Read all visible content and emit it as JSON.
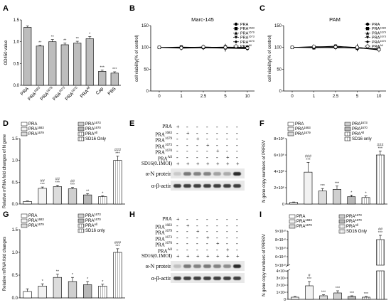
{
  "panel_letters": [
    "A",
    "B",
    "C",
    "D",
    "E",
    "F",
    "G",
    "H",
    "I"
  ],
  "chart_data": [
    {
      "id": "A",
      "type": "bar",
      "ylabel": "OD450 value",
      "categories": [
        "PRA",
        "PRA1683",
        "PRA1679",
        "PRA1673",
        "PRA1670",
        "PRAAll",
        "Cap",
        "PBS"
      ],
      "values": [
        1.33,
        0.9,
        1.0,
        0.93,
        0.97,
        1.07,
        0.32,
        0.28
      ],
      "errors": [
        0.03,
        0.02,
        0.05,
        0.04,
        0.04,
        0.05,
        0.03,
        0.03
      ],
      "stars": [
        "",
        "**",
        "**",
        "**",
        "**",
        "*",
        "***",
        "***"
      ],
      "ylim": [
        0,
        1.5
      ],
      "yticks": [
        "0.0",
        "0.5",
        "1.0",
        "1.5"
      ],
      "bar_color": "#bdbdbd"
    },
    {
      "id": "B",
      "type": "line",
      "title": "Marc-145",
      "ylabel": "cell viability(% of control)",
      "x": [
        "0",
        "1",
        "2.5",
        "5",
        "10"
      ],
      "ylim": [
        0,
        150
      ],
      "yticks": [
        "0",
        "50",
        "100",
        "150"
      ],
      "series": [
        {
          "name": "PRA",
          "values": [
            100,
            100,
            99,
            100,
            99
          ]
        },
        {
          "name": "PRA1683",
          "values": [
            100,
            101,
            100,
            101,
            100
          ]
        },
        {
          "name": "PRA1679",
          "values": [
            100,
            99,
            100,
            99,
            98
          ]
        },
        {
          "name": "PRA1673",
          "values": [
            100,
            100,
            101,
            100,
            100
          ]
        },
        {
          "name": "PRA1670",
          "values": [
            100,
            98,
            99,
            98,
            97
          ]
        },
        {
          "name": "PRAAll",
          "values": [
            100,
            99,
            101,
            100,
            99
          ]
        }
      ]
    },
    {
      "id": "C",
      "type": "line",
      "title": "PAM",
      "ylabel": "cell viability(% of control)",
      "x": [
        "0",
        "1",
        "2.5",
        "5",
        "10"
      ],
      "ylim": [
        0,
        150
      ],
      "yticks": [
        "0",
        "50",
        "100",
        "150"
      ],
      "series": [
        {
          "name": "PRA",
          "values": [
            100,
            101,
            101,
            100,
            96
          ]
        },
        {
          "name": "PRA1683",
          "values": [
            100,
            100,
            102,
            99,
            95
          ]
        },
        {
          "name": "PRA1679",
          "values": [
            100,
            99,
            100,
            98,
            97
          ]
        },
        {
          "name": "PRA1673",
          "values": [
            100,
            101,
            103,
            100,
            96
          ]
        },
        {
          "name": "PRA1670",
          "values": [
            100,
            100,
            99,
            99,
            94
          ]
        },
        {
          "name": "PRAAll",
          "values": [
            100,
            102,
            101,
            100,
            95
          ]
        }
      ]
    },
    {
      "id": "D",
      "type": "bar",
      "ylabel": "Relative mRNA fold changes of N gene",
      "legend": [
        "PRA",
        "PRA1683",
        "PRA1679",
        "PRA1673",
        "PRA1670",
        "PRAAll",
        "SD16 Only"
      ],
      "categories": [
        "PRA",
        "PRA1683",
        "PRA1679",
        "PRA1673",
        "PRA1670",
        "PRAAll",
        "SD16 Only"
      ],
      "values": [
        0.06,
        0.36,
        0.4,
        0.35,
        0.21,
        0.17,
        1.0
      ],
      "errors": [
        0.01,
        0.03,
        0.03,
        0.03,
        0.03,
        0.02,
        0.1
      ],
      "stars": [
        "",
        "##\n***",
        "##\n***",
        "##\n***",
        "**",
        "*",
        "###\n***"
      ],
      "ylim": [
        0,
        1.5
      ],
      "yticks": [
        "0.0",
        "0.5",
        "1.0",
        "1.5"
      ]
    },
    {
      "id": "F",
      "type": "bar",
      "ylabel": "N gene copy numbers of PRRSV",
      "legend": [
        "PRA",
        "PRA1683",
        "PRA1679",
        "PRA1673",
        "PRA1670",
        "PRAAll",
        "SD16 only"
      ],
      "categories": [
        "PRA",
        "PRA1683",
        "PRA1679",
        "PRA1673",
        "PRA1670",
        "PRAAll",
        "SD16 only"
      ],
      "values": [
        200000,
        3900000,
        1600000,
        1800000,
        900000,
        800000,
        6000000
      ],
      "errors": [
        50000,
        1200000,
        300000,
        400000,
        200000,
        200000,
        500000
      ],
      "stars": [
        "",
        "###\n***",
        "***",
        "***",
        "*",
        "*",
        "###\n***"
      ],
      "ylim": [
        0,
        8000000
      ],
      "yticks": [
        "0",
        "2×10⁶",
        "4×10⁶",
        "6×10⁶",
        "8×10⁶"
      ]
    },
    {
      "id": "G",
      "type": "bar",
      "ylabel": "Relative mRNA fold changes",
      "legend": [
        "PRA",
        "PRA1683",
        "PRA1679",
        "PRA1673",
        "PRA1670",
        "PRAAll",
        "SD16  only"
      ],
      "categories": [
        "PRA",
        "PRA1683",
        "PRA1679",
        "PRA1673",
        "PRA1670",
        "PRAAll",
        "SD16  only"
      ],
      "values": [
        0.14,
        0.26,
        0.45,
        0.36,
        0.29,
        0.26,
        1.0
      ],
      "errors": [
        0.06,
        0.05,
        0.07,
        0.09,
        0.07,
        0.04,
        0.08
      ],
      "stars": [
        "",
        "*",
        "**",
        "*",
        "*",
        "*",
        "###\n***"
      ],
      "ylim": [
        0,
        1.5
      ],
      "yticks": [
        "0.0",
        "0.5",
        "1.0",
        "1.5"
      ]
    },
    {
      "id": "I",
      "type": "bar",
      "ylabel": "N gene copy numbers of PRRSV",
      "legend": [
        "PRA",
        "PRA1683",
        "PRA1679",
        "PRA1673",
        "PRA1670",
        "PRAAll",
        "SD16 Only"
      ],
      "categories": [
        "PRA",
        "PRA1683",
        "PRA1679",
        "PRA1673",
        "PRA1670",
        "PRAAll",
        "SD16 Only"
      ],
      "values": [
        300000000,
        1900000000,
        500000000,
        900000000,
        400000000,
        300000000,
        80000000000
      ],
      "errors": [
        100000000,
        600000000,
        150000000,
        300000000,
        100000000,
        100000000,
        5000000000
      ],
      "stars": [
        "",
        "#\n***",
        "***",
        "***",
        "***",
        "***",
        "##\n***"
      ],
      "yticks_lower": [
        "0",
        "1×10⁹",
        "2×10⁹",
        "3×10⁹",
        "4×10⁹"
      ],
      "yticks_upper": [
        "5×10¹⁰",
        "6×10¹⁰",
        "7×10¹⁰",
        "8×10¹⁰",
        "9×10¹⁰"
      ]
    }
  ],
  "x_axis_shared_BC_ticks": [
    "0",
    "1",
    "2.5",
    "5",
    "10"
  ],
  "blots": [
    {
      "id": "E",
      "rows": [
        {
          "label": "PRA",
          "signs": [
            "+",
            "-",
            "-",
            "-",
            "-",
            "-",
            "-"
          ]
        },
        {
          "label": "PRA1683",
          "signs": [
            "-",
            "+",
            "-",
            "-",
            "-",
            "-",
            "-"
          ]
        },
        {
          "label": "PRA1679",
          "signs": [
            "-",
            "-",
            "+",
            "-",
            "-",
            "-",
            "-"
          ]
        },
        {
          "label": "PRA1673",
          "signs": [
            "-",
            "-",
            "-",
            "+",
            "-",
            "-",
            "-"
          ]
        },
        {
          "label": "PRA1670",
          "signs": [
            "-",
            "-",
            "-",
            "-",
            "+",
            "-",
            "-"
          ]
        },
        {
          "label": "PRAAll",
          "signs": [
            "-",
            "-",
            "-",
            "-",
            "-",
            "+",
            "-"
          ]
        },
        {
          "label": "SD16(0.1MOI)",
          "signs": [
            "+",
            "+",
            "+",
            "+",
            "+",
            "+",
            "+"
          ]
        }
      ],
      "bands": [
        "α-N protein",
        "α-β-actin"
      ],
      "n_intensity": [
        0.15,
        0.55,
        0.5,
        0.5,
        0.35,
        0.3,
        0.95
      ]
    },
    {
      "id": "H",
      "rows": [
        {
          "label": "PRA",
          "signs": [
            "+",
            "-",
            "-",
            "-",
            "-",
            "-",
            "-"
          ]
        },
        {
          "label": "PRA1683",
          "signs": [
            "-",
            "+",
            "-",
            "-",
            "-",
            "-",
            "-"
          ]
        },
        {
          "label": "PRA1679",
          "signs": [
            "-",
            "-",
            "+",
            "-",
            "-",
            "-",
            "-"
          ]
        },
        {
          "label": "PRA1673",
          "signs": [
            "-",
            "-",
            "-",
            "+",
            "-",
            "-",
            "-"
          ]
        },
        {
          "label": "PRA1670",
          "signs": [
            "-",
            "-",
            "-",
            "-",
            "+",
            "-",
            "-"
          ]
        },
        {
          "label": "PRAAll",
          "signs": [
            "-",
            "-",
            "-",
            "-",
            "-",
            "+",
            "-"
          ]
        },
        {
          "label": "SD16(0.1MOI)",
          "signs": [
            "+",
            "+",
            "+",
            "+",
            "+",
            "+",
            "+"
          ]
        }
      ],
      "bands": [
        "α-N protein",
        "α-β-actin"
      ],
      "n_intensity": [
        0.2,
        0.55,
        0.5,
        0.55,
        0.5,
        0.45,
        0.95
      ]
    }
  ]
}
